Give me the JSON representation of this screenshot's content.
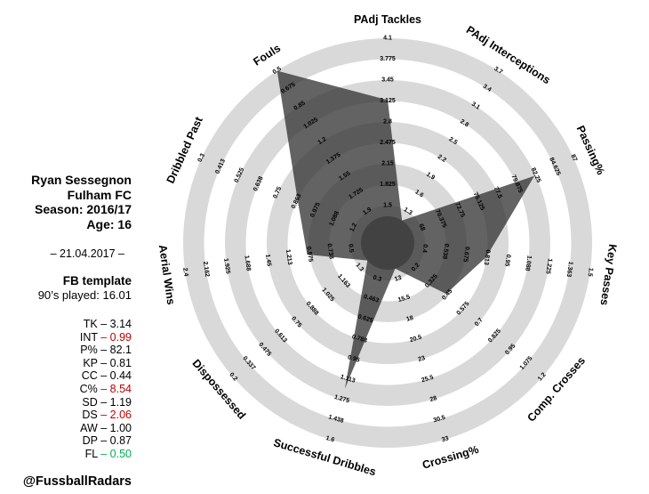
{
  "player_panel": {
    "name": "Ryan Sessegnon",
    "club": "Fulham FC",
    "season": "Season: 2016/17",
    "age": "Age: 16",
    "date": "– 21.04.2017 –",
    "template": "FB template",
    "nineties": "90’s played: 16.01",
    "credit": "@FussballRadars"
  },
  "stat_colors": {
    "normal": "#000000",
    "bad": "#c00000",
    "good": "#00b050"
  },
  "chart_data": {
    "type": "radar",
    "rings": 8,
    "ring_color": "#d9d9d9",
    "ring_alt_color": "#ffffff",
    "inner_circle_color": "#d9d9d9",
    "center_disk_color": "#7d7d7d",
    "polygon_color": "rgba(47,47,47,0.75)",
    "legend_position": "none",
    "grid": "concentric-bands",
    "axes": [
      {
        "label": "PAdj Tackles",
        "abbr": "TK",
        "value": 3.14,
        "value_display": "3.14",
        "rating": "normal",
        "ticks_outer_to_inner": [
          "4.1",
          "3.775",
          "3.45",
          "3.125",
          "2.8",
          "2.475",
          "2.15",
          "1.825",
          "1.5"
        ]
      },
      {
        "label": "PAdj Interceptions",
        "abbr": "INT",
        "value": 0.99,
        "value_display": "0.99",
        "rating": "bad",
        "ticks_outer_to_inner": [
          "3.7",
          "3.4",
          "3.1",
          "2.8",
          "2.5",
          "2.2",
          "1.9",
          "1.6",
          "1.3"
        ]
      },
      {
        "label": "Passing%",
        "abbr": "P%",
        "value": 82.1,
        "value_display": "82.1",
        "rating": "normal",
        "ticks_outer_to_inner": [
          "87",
          "84.625",
          "82.25",
          "79.875",
          "77.5",
          "75.125",
          "72.75",
          "70.375",
          "68"
        ]
      },
      {
        "label": "Key Passes",
        "abbr": "KP",
        "value": 0.81,
        "value_display": "0.81",
        "rating": "normal",
        "ticks_outer_to_inner": [
          "1.5",
          "1.363",
          "1.225",
          "1.088",
          "0.95",
          "0.813",
          "0.675",
          "0.538",
          "0.4"
        ]
      },
      {
        "label": "Comp. Crosses",
        "abbr": "CC",
        "value": 0.44,
        "value_display": "0.44",
        "rating": "normal",
        "ticks_outer_to_inner": [
          "1.2",
          "1.075",
          "0.95",
          "0.825",
          "0.7",
          "0.575",
          "0.45",
          "0.325",
          "0.2"
        ]
      },
      {
        "label": "Crossing%",
        "abbr": "C%",
        "value": 8.54,
        "value_display": "8.54",
        "rating": "bad",
        "ticks_outer_to_inner": [
          "33",
          "30.5",
          "28",
          "25.5",
          "23",
          "20.5",
          "18",
          "15.5",
          "13"
        ]
      },
      {
        "label": "Successful Dribbles",
        "abbr": "SD",
        "value": 1.19,
        "value_display": "1.19",
        "rating": "normal",
        "ticks_outer_to_inner": [
          "1.6",
          "1.438",
          "1.275",
          "1.113",
          "0.95",
          "0.788",
          "0.625",
          "0.463",
          "0.3"
        ]
      },
      {
        "label": "Dispossessed",
        "abbr": "DS",
        "value": 2.06,
        "value_display": "2.06",
        "rating": "bad",
        "ticks_outer_to_inner": [
          "0.2",
          "0.337",
          "0.475",
          "0.613",
          "0.75",
          "0.888",
          "1.025",
          "1.163",
          "1.3"
        ]
      },
      {
        "label": "Aerial Wins",
        "abbr": "AW",
        "value": 1.0,
        "value_display": "1.00",
        "rating": "normal",
        "ticks_outer_to_inner": [
          "2.4",
          "2.162",
          "1.925",
          "1.688",
          "1.45",
          "1.213",
          "0.975",
          "0.738",
          "0.5"
        ]
      },
      {
        "label": "Dribbled Past",
        "abbr": "DP",
        "value": 0.87,
        "value_display": "0.87",
        "rating": "normal",
        "ticks_outer_to_inner": [
          "0.3",
          "0.413",
          "0.525",
          "0.638",
          "0.75",
          "0.863",
          "0.975",
          "1.088",
          "1.2"
        ]
      },
      {
        "label": "Fouls",
        "abbr": "FL",
        "value": 0.5,
        "value_display": "0.50",
        "rating": "good",
        "ticks_outer_to_inner": [
          "0.5",
          "0.675",
          "0.85",
          "1.025",
          "1.2",
          "1.375",
          "1.55",
          "1.725",
          "1.9"
        ]
      }
    ]
  }
}
